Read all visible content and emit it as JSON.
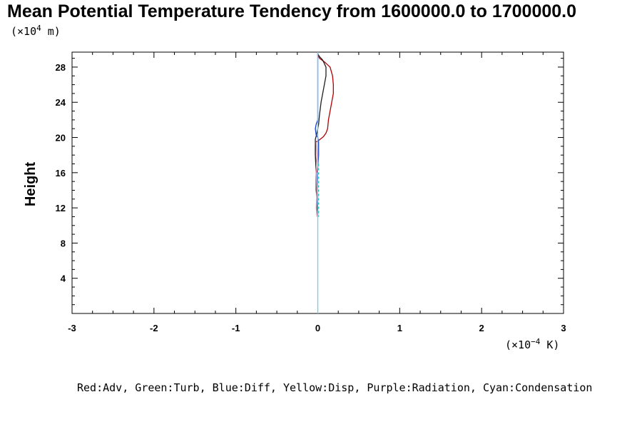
{
  "chart_data": {
    "type": "line",
    "title": "Mean Potential Temperature Tendency from 1600000.0 to 1700000.0",
    "ylabel": "Height",
    "y_unit": {
      "base": "(×10",
      "exp": "4",
      "rest": " m)"
    },
    "x_unit": {
      "base": "(×10",
      "exp": "−4",
      "rest": " K)"
    },
    "legend_note": "Red:Adv, Green:Turb, Blue:Diff, Yellow:Disp, Purple:Radiation, Cyan:Condensation",
    "xlim": [
      -3,
      3
    ],
    "ylim": [
      0,
      29.7
    ],
    "x_ticks": [
      -3,
      -2,
      -1,
      0,
      1,
      2,
      3
    ],
    "x_tick_labels": [
      "-3",
      "-2",
      "-1",
      "0",
      "1",
      "2",
      "3"
    ],
    "y_ticks": [
      4,
      8,
      12,
      16,
      20,
      24,
      28
    ],
    "y_tick_labels": [
      "4",
      "8",
      "12",
      "16",
      "20",
      "24",
      "28"
    ],
    "grid": false,
    "series": [
      {
        "color": "#b00000",
        "dash": "",
        "x": [
          0.0,
          0.0,
          0.02,
          0.08,
          0.15,
          0.18,
          0.19,
          0.19,
          0.17,
          0.15,
          0.13,
          0.12,
          0.1,
          0.07,
          0.03,
          0.0,
          -0.02,
          -0.03,
          -0.03,
          -0.02,
          -0.01
        ],
        "y": [
          29.5,
          29.4,
          29.0,
          28.6,
          28.0,
          27.0,
          26.0,
          25.0,
          24.0,
          23.0,
          22.0,
          21.0,
          20.5,
          20.1,
          19.8,
          19.6,
          19.5,
          19.0,
          18.0,
          17.0,
          16.0
        ]
      },
      {
        "color": "#202020",
        "dash": "",
        "x": [
          0.0,
          0.02,
          0.06,
          0.1,
          0.1,
          0.08,
          0.04,
          0.02,
          0.01,
          -0.01,
          -0.03,
          -0.03,
          -0.02,
          -0.02,
          -0.01,
          -0.01,
          0.0
        ],
        "y": [
          29.5,
          29.2,
          28.8,
          28.0,
          27.0,
          26.0,
          24.0,
          22.5,
          21.5,
          20.5,
          19.8,
          18.0,
          16.0,
          14.0,
          13.0,
          12.0,
          11.0
        ]
      },
      {
        "color": "#1a3ccc",
        "dash": "",
        "x": [
          0.0,
          0.0,
          0.0,
          0.0,
          -0.02,
          -0.03,
          -0.02,
          0.0,
          0.01,
          0.01,
          0.0,
          -0.01,
          0.0,
          -0.01,
          0.0,
          0.0
        ],
        "y": [
          29.6,
          27.0,
          24.0,
          22.0,
          21.5,
          21.0,
          20.3,
          20.0,
          19.5,
          18.0,
          16.5,
          15.0,
          14.0,
          13.0,
          12.0,
          11.0
        ]
      },
      {
        "color": "#ff9fb0",
        "dash": "",
        "x": [
          -0.02,
          -0.01,
          -0.02,
          -0.01,
          -0.02,
          -0.01
        ],
        "y": [
          19.5,
          18.0,
          16.0,
          14.0,
          12.0,
          11.0
        ]
      },
      {
        "color": "#8a8a8a",
        "dash": "",
        "x": [
          0.0,
          0.0
        ],
        "y": [
          13.5,
          12.0
        ]
      },
      {
        "color": "#20c0b0",
        "dash": "3 3",
        "x": [
          0.01,
          0.01
        ],
        "y": [
          17.0,
          11.0
        ]
      },
      {
        "color": "#5ad8e8",
        "dash": "",
        "x": [
          0.0,
          0.0,
          0.0,
          0.0,
          0.0,
          0.0,
          0.0,
          0.0,
          0.0,
          0.0
        ],
        "y": [
          29.7,
          28.5,
          27.0,
          22.0,
          20.0,
          15.0,
          11.0,
          8.0,
          4.0,
          0.0
        ]
      }
    ]
  }
}
